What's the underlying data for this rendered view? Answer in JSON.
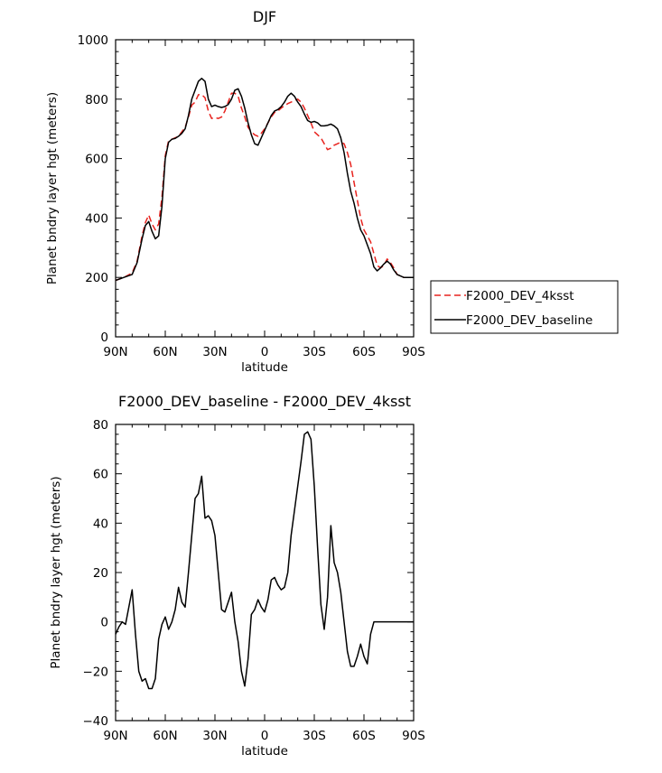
{
  "chart_data": [
    {
      "type": "line",
      "title": "DJF",
      "xlabel": "latitude",
      "ylabel": "Planet bndry layer hgt (meters)",
      "xlim": [
        -90,
        90
      ],
      "ylim": [
        0,
        1000
      ],
      "xticks": [
        -90,
        -60,
        -30,
        0,
        30,
        60,
        90
      ],
      "xtick_labels": [
        "90N",
        "60N",
        "30N",
        "0",
        "30S",
        "60S",
        "90S"
      ],
      "yticks": [
        0,
        200,
        400,
        600,
        800,
        1000
      ],
      "ytick_labels": [
        "0",
        "200",
        "400",
        "600",
        "800",
        "1000"
      ],
      "legend_position": "right",
      "series": [
        {
          "name": "F2000_DEV_4ksst",
          "color": "#e8231e",
          "dash": "dashed",
          "x": [
            -90,
            -85,
            -80,
            -77,
            -74,
            -72,
            -70,
            -68,
            -66,
            -64,
            -62,
            -60,
            -58,
            -56,
            -54,
            -52,
            -50,
            -48,
            -46,
            -44,
            -42,
            -40,
            -38,
            -36,
            -34,
            -32,
            -30,
            -28,
            -26,
            -24,
            -22,
            -20,
            -18,
            -16,
            -14,
            -12,
            -10,
            -8,
            -6,
            -4,
            -2,
            0,
            2,
            4,
            6,
            8,
            10,
            12,
            14,
            16,
            18,
            20,
            22,
            24,
            26,
            28,
            30,
            32,
            34,
            36,
            38,
            40,
            42,
            44,
            46,
            48,
            50,
            52,
            54,
            56,
            58,
            60,
            62,
            64,
            66,
            68,
            70,
            72,
            74,
            76,
            78,
            80,
            82,
            84,
            86,
            88,
            90
          ],
          "y": [
            190,
            200,
            215,
            255,
            340,
            385,
            410,
            380,
            360,
            380,
            470,
            610,
            660,
            665,
            670,
            675,
            690,
            705,
            740,
            780,
            790,
            815,
            815,
            805,
            760,
            735,
            738,
            735,
            740,
            760,
            790,
            820,
            820,
            810,
            770,
            740,
            705,
            690,
            680,
            675,
            685,
            700,
            720,
            740,
            755,
            760,
            770,
            778,
            785,
            790,
            795,
            800,
            790,
            770,
            745,
            720,
            690,
            680,
            670,
            650,
            630,
            635,
            645,
            650,
            655,
            650,
            620,
            580,
            520,
            460,
            400,
            360,
            340,
            320,
            280,
            240,
            232,
            240,
            262,
            250,
            232,
            210,
            205,
            200,
            200,
            200,
            200
          ]
        },
        {
          "name": "F2000_DEV_baseline",
          "color": "#000000",
          "dash": "solid",
          "x": [
            -90,
            -85,
            -80,
            -77,
            -74,
            -72,
            -70,
            -68,
            -66,
            -64,
            -62,
            -60,
            -58,
            -56,
            -54,
            -52,
            -50,
            -48,
            -46,
            -44,
            -42,
            -40,
            -38,
            -36,
            -34,
            -32,
            -30,
            -28,
            -26,
            -24,
            -22,
            -20,
            -18,
            -16,
            -14,
            -12,
            -10,
            -8,
            -6,
            -4,
            -2,
            0,
            2,
            4,
            6,
            8,
            10,
            12,
            14,
            16,
            18,
            20,
            22,
            24,
            26,
            28,
            30,
            32,
            34,
            36,
            38,
            40,
            42,
            44,
            46,
            48,
            50,
            52,
            54,
            56,
            58,
            60,
            62,
            64,
            66,
            68,
            70,
            72,
            74,
            76,
            78,
            80,
            82,
            84,
            86,
            88,
            90
          ],
          "y": [
            190,
            200,
            210,
            250,
            330,
            375,
            388,
            355,
            330,
            340,
            440,
            600,
            655,
            665,
            668,
            675,
            685,
            700,
            745,
            800,
            830,
            860,
            870,
            860,
            800,
            775,
            780,
            775,
            772,
            775,
            782,
            800,
            830,
            835,
            810,
            770,
            720,
            680,
            650,
            645,
            670,
            695,
            720,
            745,
            760,
            765,
            775,
            790,
            810,
            820,
            810,
            790,
            775,
            750,
            728,
            722,
            725,
            720,
            710,
            710,
            712,
            716,
            710,
            700,
            670,
            620,
            550,
            490,
            450,
            400,
            360,
            340,
            310,
            280,
            235,
            222,
            232,
            245,
            255,
            245,
            225,
            210,
            205,
            200,
            200,
            200,
            200
          ]
        }
      ]
    },
    {
      "type": "line",
      "title": "F2000_DEV_baseline - F2000_DEV_4ksst",
      "xlabel": "latitude",
      "ylabel": "Planet bndry layer hgt (meters)",
      "xlim": [
        -90,
        90
      ],
      "ylim": [
        -40,
        80
      ],
      "xticks": [
        -90,
        -60,
        -30,
        0,
        30,
        60,
        90
      ],
      "xtick_labels": [
        "90N",
        "60N",
        "30N",
        "0",
        "30S",
        "60S",
        "90S"
      ],
      "yticks": [
        -40,
        -20,
        0,
        20,
        40,
        60,
        80
      ],
      "ytick_labels": [
        "−40",
        "−20",
        "0",
        "20",
        "40",
        "60",
        "80"
      ],
      "series": [
        {
          "color": "#000000",
          "dash": "solid",
          "x": [
            -90,
            -88,
            -86,
            -84,
            -82,
            -80,
            -78,
            -76,
            -74,
            -72,
            -70,
            -68,
            -66,
            -64,
            -62,
            -60,
            -58,
            -56,
            -54,
            -52,
            -50,
            -48,
            -46,
            -44,
            -42,
            -40,
            -38,
            -36,
            -34,
            -32,
            -30,
            -28,
            -26,
            -24,
            -22,
            -20,
            -18,
            -16,
            -14,
            -12,
            -10,
            -8,
            -6,
            -4,
            -2,
            0,
            2,
            4,
            6,
            8,
            10,
            12,
            14,
            16,
            18,
            20,
            22,
            24,
            26,
            28,
            30,
            32,
            34,
            36,
            38,
            40,
            42,
            44,
            46,
            48,
            50,
            52,
            54,
            56,
            58,
            60,
            62,
            64,
            66,
            67,
            68,
            70,
            72,
            74,
            76,
            78,
            80,
            82,
            84,
            86,
            88,
            90
          ],
          "y": [
            -5,
            -2,
            0,
            -1,
            6,
            13,
            -5,
            -20,
            -24,
            -23,
            -27,
            -27,
            -23,
            -7,
            -1,
            2,
            -3,
            0,
            5,
            14,
            8,
            6,
            20,
            35,
            50,
            52,
            59,
            42,
            43,
            41,
            35,
            20,
            5,
            4,
            8,
            12,
            0,
            -8,
            -20,
            -26,
            -15,
            3,
            5,
            9,
            6,
            4,
            9,
            17,
            18,
            15,
            13,
            14,
            20,
            35,
            45,
            55,
            65,
            76,
            77,
            74,
            55,
            30,
            7,
            -3,
            10,
            39,
            24,
            20,
            12,
            0,
            -12,
            -18,
            -18,
            -14,
            -9,
            -14,
            -17,
            -5,
            0,
            0,
            0,
            0,
            0,
            0,
            0,
            0,
            0,
            0,
            0,
            0,
            0,
            0
          ]
        }
      ]
    }
  ]
}
